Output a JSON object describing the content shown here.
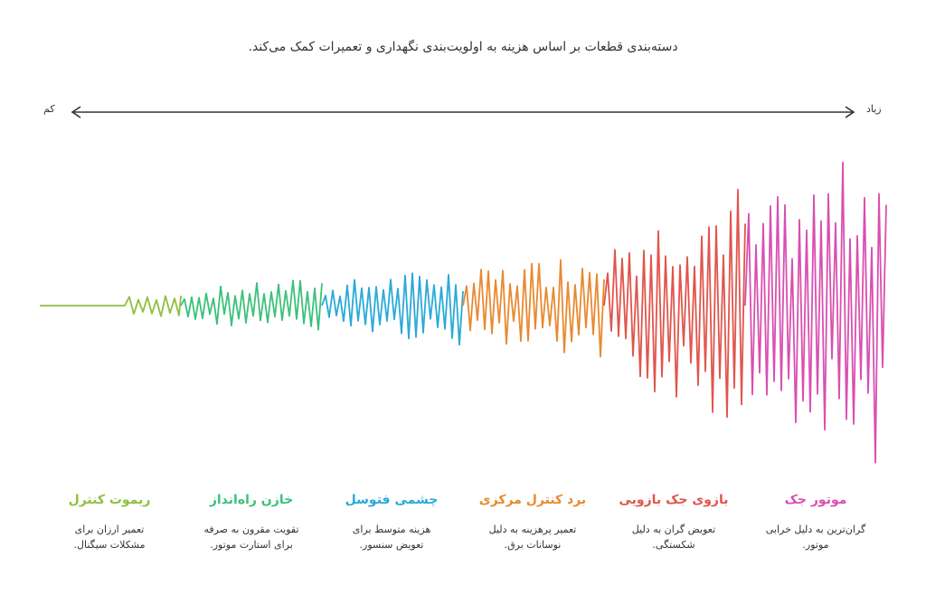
{
  "title": "دسته‌بندی قطعات بر اساس هزینه به اولویت‌بندی نگهداری و تعمیرات کمک می‌کند.",
  "axis": {
    "low_label": "کم",
    "high_label": "زیاد"
  },
  "categories": [
    {
      "name": "ریموت کنترل",
      "description": "تعمیر ارزان برای مشکلات سیگنال.",
      "color": "#8fbf3f"
    },
    {
      "name": "خازن راه‌انداز",
      "description": "تقویت مقرون به صرفه برای استارت موتور.",
      "color": "#3cc07a"
    },
    {
      "name": "چشمی فتوسل",
      "description": "هزینه متوسط برای تعویض سنسور.",
      "color": "#2aa9d8"
    },
    {
      "name": "برد کنترل مرکزی",
      "description": "تعمیر پرهزینه به دلیل نوسانات برق.",
      "color": "#e8892f"
    },
    {
      "name": "بازوی جک بازویی",
      "description": "تعویض گران به دلیل شکستگی.",
      "color": "#e0554c"
    },
    {
      "name": "موتور جک",
      "description": "گران‌ترین به دلیل خرابی موتور.",
      "color": "#d94fb0"
    }
  ]
}
